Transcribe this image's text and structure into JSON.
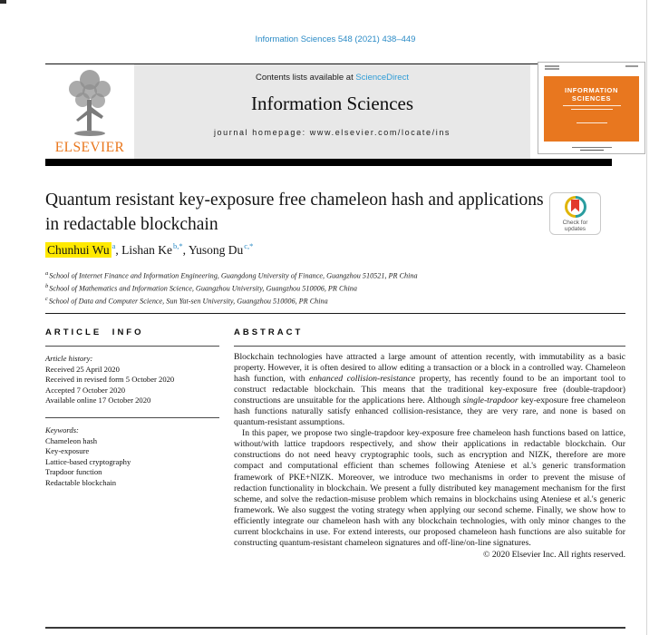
{
  "masthead": {
    "citation": "Information Sciences 548 (2021) 438–449",
    "publisher": "ELSEVIER",
    "contents_prefix": "Contents lists available at ",
    "sciencedirect": "ScienceDirect",
    "journal_title": "Information Sciences",
    "homepage": "journal homepage: www.elsevier.com/locate/ins",
    "cover": {
      "title_line1": "INFORMATION",
      "title_line2": "SCIENCES"
    }
  },
  "article": {
    "title": "Quantum resistant key-exposure free chameleon hash and applications in redactable blockchain",
    "check_updates": "Check for updates",
    "authors": [
      {
        "name": "Chunhui Wu",
        "sup": "a",
        "highlighted": true
      },
      {
        "name": "Lishan Ke",
        "sup": "b,*"
      },
      {
        "name": "Yusong Du",
        "sup": "c,*"
      }
    ],
    "affiliations": [
      {
        "sup": "a",
        "text": "School of Internet Finance and Information Engineering, Guangdong University of Finance, Guangzhou 510521, PR China"
      },
      {
        "sup": "b",
        "text": "School of Mathematics and Information Science, Guangzhou University, Guangzhou 510006, PR China"
      },
      {
        "sup": "c",
        "text": "School of Data and Computer Science, Sun Yat-sen University, Guangzhou 510006, PR China"
      }
    ]
  },
  "article_info": {
    "heading": "ARTICLE INFO",
    "history_label": "Article history:",
    "history": [
      "Received 25 April 2020",
      "Received in revised form 5 October 2020",
      "Accepted 7 October 2020",
      "Available online 17 October 2020"
    ],
    "keywords_label": "Keywords:",
    "keywords": [
      "Chameleon hash",
      "Key-exposure",
      "Lattice-based cryptography",
      "Trapdoor function",
      "Redactable blockchain"
    ]
  },
  "abstract": {
    "heading": "ABSTRACT",
    "paragraphs": [
      {
        "indent": false,
        "segments": [
          {
            "text": "Blockchain technologies have attracted a large amount of attention recently, with immutability as a basic property. However, it is often desired to allow editing a transaction or a block in a controlled way. Chameleon hash function, with "
          },
          {
            "text": "enhanced collision-resistance",
            "italic": true
          },
          {
            "text": " property, has recently found to be an important tool to construct redactable blockchain. This means that the traditional key-exposure free (double-trapdoor) constructions are unsuitable for the applications here. Although "
          },
          {
            "text": "single-trapdoor",
            "italic": true
          },
          {
            "text": " key-exposure free chameleon hash functions naturally satisfy enhanced collision-resistance, they are very rare, and none is based on quantum-resistant assumptions."
          }
        ]
      },
      {
        "indent": true,
        "segments": [
          {
            "text": "In this paper, we propose two single-trapdoor key-exposure free chameleon hash functions based on lattice, without/with lattice trapdoors respectively, and show their applications in redactable blockchain. Our constructions do not need heavy cryptographic tools, such as encryption and NIZK, therefore are more compact and computational efficient than schemes following Ateniese et al.'s generic transformation framework of PKE+NIZK. Moreover, we introduce two mechanisms in order to prevent the misuse of redaction functionality in blockchain. We present a fully distributed key management mechanism for the first scheme, and solve the redaction-misuse problem which remains in blockchains using Ateniese et al.'s generic framework. We also suggest the voting strategy when applying our second scheme. Finally, we show how to efficiently integrate our chameleon hash with any blockchain technologies, with only minor changes to the current blockchains in use. For extend interests, our proposed chameleon hash functions are also suitable for constructing quantum-resistant chameleon signatures and off-line/on-line signatures."
          }
        ]
      }
    ],
    "copyright": "© 2020 Elsevier Inc. All rights reserved."
  },
  "colors": {
    "link_blue": "#2b8bc6",
    "elsevier_orange": "#E9761B",
    "cover_orange": "#E8771F",
    "highlight_yellow": "#ffe900"
  }
}
